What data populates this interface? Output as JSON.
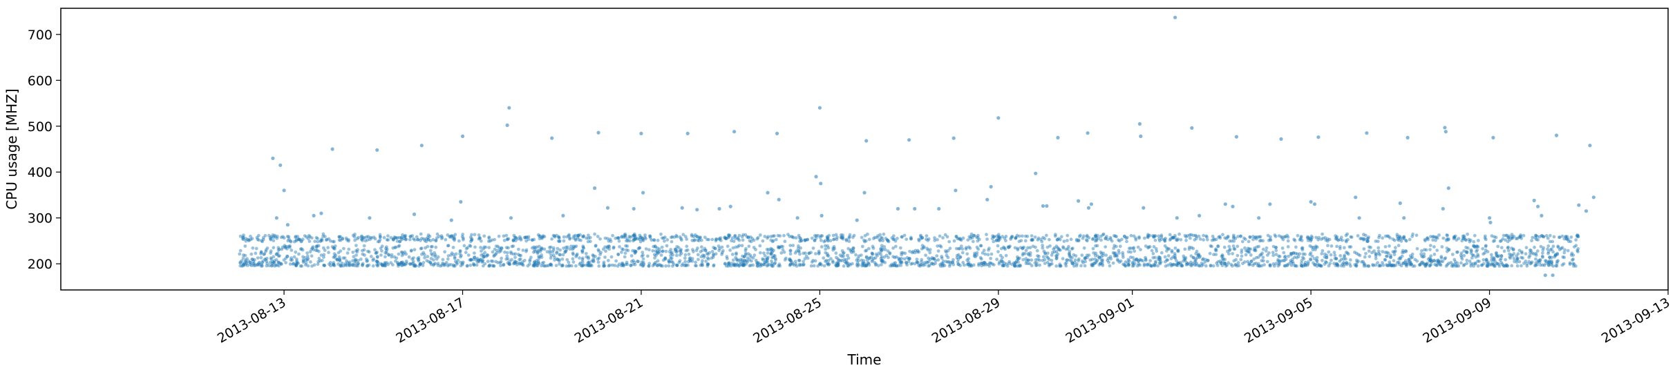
{
  "chart_data": {
    "type": "scatter",
    "title": "",
    "xlabel": "Time",
    "ylabel": "CPU usage [MHZ]",
    "x_axis_type": "date",
    "xlim": [
      "2013-08-08",
      "2013-09-13"
    ],
    "ylim": [
      143,
      757
    ],
    "x_ticks": [
      "2013-08-13",
      "2013-08-17",
      "2013-08-21",
      "2013-08-25",
      "2013-08-29",
      "2013-09-01",
      "2013-09-05",
      "2013-09-09",
      "2013-09-13"
    ],
    "y_ticks": [
      200,
      300,
      400,
      500,
      600,
      700
    ],
    "grid": false,
    "legend": "none",
    "marker_color": "#1f77b4",
    "marker_alpha": 0.45,
    "data_range": {
      "start": "2013-08-12",
      "end": "2013-09-11",
      "baseline_low": 195,
      "baseline_high": 240,
      "upper_band": 255
    },
    "series": [
      {
        "points": [
          [
            "2013-08-12 18:00",
            430
          ],
          [
            "2013-08-12 22:00",
            415
          ],
          [
            "2013-08-13 00:00",
            360
          ],
          [
            "2013-08-13 02:00",
            285
          ],
          [
            "2013-08-12 20:00",
            300
          ],
          [
            "2013-08-14 02:00",
            450
          ],
          [
            "2013-08-13 16:00",
            305
          ],
          [
            "2013-08-13 20:00",
            310
          ],
          [
            "2013-08-15 02:00",
            448
          ],
          [
            "2013-08-14 22:00",
            300
          ],
          [
            "2013-08-16 02:00",
            458
          ],
          [
            "2013-08-15 22:00",
            308
          ],
          [
            "2013-08-17 00:00",
            478
          ],
          [
            "2013-08-16 23:00",
            335
          ],
          [
            "2013-08-16 18:00",
            295
          ],
          [
            "2013-08-18 01:00",
            540
          ],
          [
            "2013-08-18 00:00",
            502
          ],
          [
            "2013-08-18 02:00",
            300
          ],
          [
            "2013-08-19 00:00",
            474
          ],
          [
            "2013-08-19 06:00",
            305
          ],
          [
            "2013-08-20 01:00",
            486
          ],
          [
            "2013-08-19 23:00",
            365
          ],
          [
            "2013-08-20 06:00",
            322
          ],
          [
            "2013-08-21 00:00",
            484
          ],
          [
            "2013-08-21 01:00",
            355
          ],
          [
            "2013-08-20 20:00",
            320
          ],
          [
            "2013-08-22 01:00",
            484
          ],
          [
            "2013-08-21 22:00",
            322
          ],
          [
            "2013-08-22 06:00",
            318
          ],
          [
            "2013-08-23 02:00",
            488
          ],
          [
            "2013-08-22 18:00",
            320
          ],
          [
            "2013-08-23 00:00",
            325
          ],
          [
            "2013-08-24 01:00",
            484
          ],
          [
            "2013-08-23 20:00",
            355
          ],
          [
            "2013-08-24 02:00",
            340
          ],
          [
            "2013-08-25 00:00",
            540
          ],
          [
            "2013-08-24 22:00",
            390
          ],
          [
            "2013-08-25 00:30",
            375
          ],
          [
            "2013-08-25 01:00",
            305
          ],
          [
            "2013-08-24 12:00",
            300
          ],
          [
            "2013-08-26 01:00",
            468
          ],
          [
            "2013-08-26 00:00",
            355
          ],
          [
            "2013-08-25 20:00",
            295
          ],
          [
            "2013-08-27 00:00",
            470
          ],
          [
            "2013-08-26 18:00",
            320
          ],
          [
            "2013-08-27 03:00",
            320
          ],
          [
            "2013-08-28 00:00",
            474
          ],
          [
            "2013-08-28 01:00",
            360
          ],
          [
            "2013-08-27 16:00",
            320
          ],
          [
            "2013-08-29 00:00",
            518
          ],
          [
            "2013-08-28 20:00",
            368
          ],
          [
            "2013-08-28 18:00",
            340
          ],
          [
            "2013-08-29 20:00",
            397
          ],
          [
            "2013-08-30 00:00",
            326
          ],
          [
            "2013-08-30 02:00",
            326
          ],
          [
            "2013-08-30 08:00",
            475
          ],
          [
            "2013-08-31 00:00",
            485
          ],
          [
            "2013-08-30 19:00",
            337
          ],
          [
            "2013-08-31 02:00",
            330
          ],
          [
            "2013-08-31 00:30",
            322
          ],
          [
            "2013-09-01 04:00",
            505
          ],
          [
            "2013-09-01 04:30",
            478
          ],
          [
            "2013-09-01 06:00",
            322
          ],
          [
            "2013-09-01 23:00",
            737
          ],
          [
            "2013-09-02 00:00",
            300
          ],
          [
            "2013-09-02 08:00",
            496
          ],
          [
            "2013-09-02 12:00",
            305
          ],
          [
            "2013-09-03 02:00",
            330
          ],
          [
            "2013-09-03 06:00",
            325
          ],
          [
            "2013-09-03 08:00",
            477
          ],
          [
            "2013-09-04 02:00",
            330
          ],
          [
            "2013-09-04 08:00",
            472
          ],
          [
            "2013-09-03 20:00",
            300
          ],
          [
            "2013-09-05 00:00",
            335
          ],
          [
            "2013-09-05 02:00",
            330
          ],
          [
            "2013-09-05 04:00",
            476
          ],
          [
            "2013-09-06 00:00",
            345
          ],
          [
            "2013-09-06 06:00",
            485
          ],
          [
            "2013-09-06 02:00",
            300
          ],
          [
            "2013-09-07 00:00",
            332
          ],
          [
            "2013-09-07 04:00",
            475
          ],
          [
            "2013-09-07 02:00",
            300
          ],
          [
            "2013-09-08 00:00",
            497
          ],
          [
            "2013-09-08 00:30",
            488
          ],
          [
            "2013-09-08 02:00",
            365
          ],
          [
            "2013-09-07 23:00",
            320
          ],
          [
            "2013-09-09 00:00",
            300
          ],
          [
            "2013-09-09 00:30",
            290
          ],
          [
            "2013-09-09 02:00",
            475
          ],
          [
            "2013-09-10 00:00",
            338
          ],
          [
            "2013-09-10 02:00",
            325
          ],
          [
            "2013-09-10 04:00",
            305
          ],
          [
            "2013-09-10 12:00",
            480
          ],
          [
            "2013-09-10 06:00",
            175
          ],
          [
            "2013-09-10 10:00",
            175
          ],
          [
            "2013-09-11 00:00",
            328
          ],
          [
            "2013-09-11 06:00",
            458
          ],
          [
            "2013-09-11 08:00",
            345
          ],
          [
            "2013-09-11 04:00",
            315
          ]
        ]
      }
    ]
  }
}
